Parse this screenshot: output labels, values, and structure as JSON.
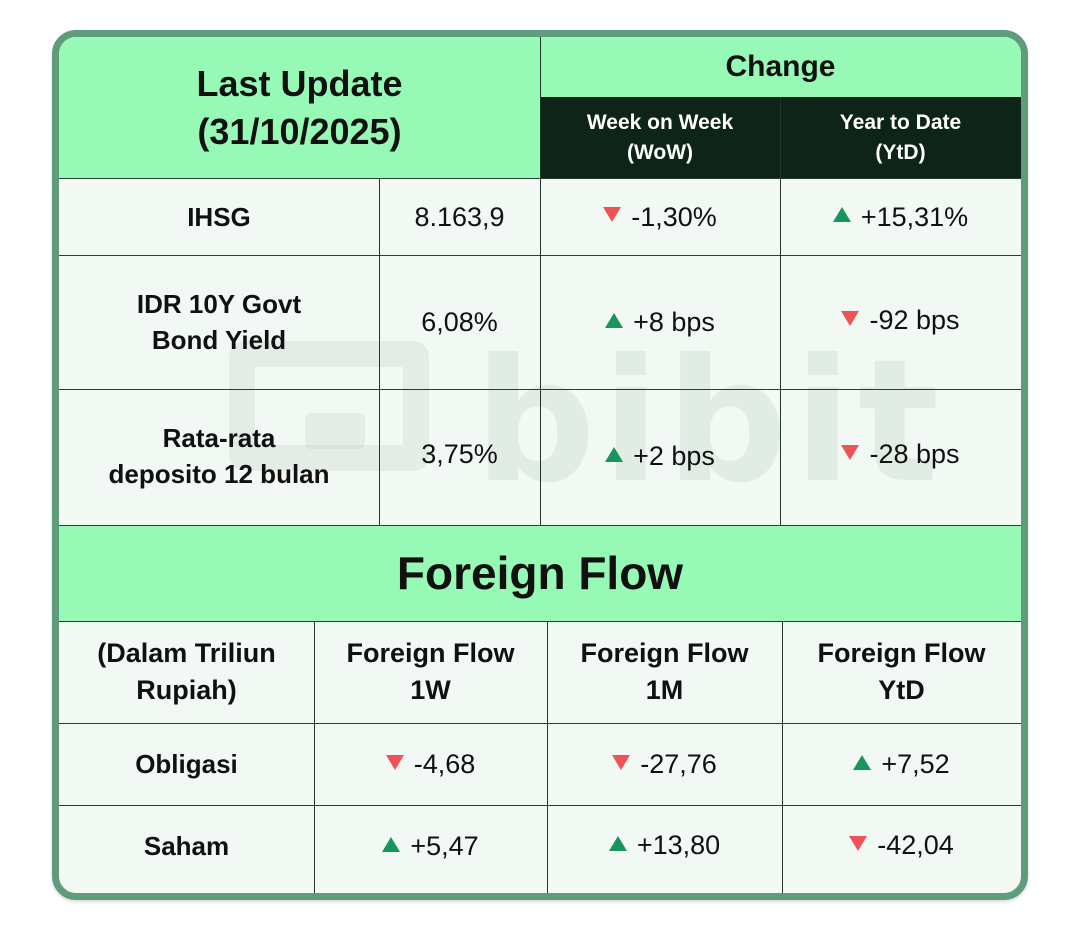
{
  "header": {
    "last_update_line1": "Last Update",
    "last_update_line2": "(31/10/2025)",
    "change_label": "Change",
    "wow_line1": "Week on Week",
    "wow_line2": "(WoW)",
    "ytd_line1": "Year to Date",
    "ytd_line2": "(YtD)"
  },
  "indicators": [
    {
      "name_line1": "IHSG",
      "name_line2": "",
      "value": "8.163,9",
      "wow": "-1,30%",
      "wow_dir": "down",
      "ytd": "+15,31%",
      "ytd_dir": "up"
    },
    {
      "name_line1": "IDR 10Y Govt",
      "name_line2": "Bond Yield",
      "value": "6,08%",
      "wow": "+8 bps",
      "wow_dir": "up",
      "ytd": "-92 bps",
      "ytd_dir": "down"
    },
    {
      "name_line1": "Rata-rata",
      "name_line2": "deposito 12 bulan",
      "value": "3,75%",
      "wow": "+2 bps",
      "wow_dir": "up",
      "ytd": "-28 bps",
      "ytd_dir": "down"
    }
  ],
  "foreign_flow": {
    "title": "Foreign Flow",
    "unit_line1": "(Dalam Triliun",
    "unit_line2": "Rupiah)",
    "columns": [
      {
        "line1": "Foreign Flow",
        "line2": "1W"
      },
      {
        "line1": "Foreign Flow",
        "line2": "1M"
      },
      {
        "line1": "Foreign Flow",
        "line2": "YtD"
      }
    ],
    "rows": [
      {
        "label": "Obligasi",
        "values": [
          {
            "text": "-4,68",
            "dir": "down"
          },
          {
            "text": "-27,76",
            "dir": "down"
          },
          {
            "text": "+7,52",
            "dir": "up"
          }
        ]
      },
      {
        "label": "Saham",
        "values": [
          {
            "text": "+5,47",
            "dir": "up"
          },
          {
            "text": "+13,80",
            "dir": "up"
          },
          {
            "text": "-42,04",
            "dir": "down"
          }
        ]
      }
    ]
  },
  "watermark": {
    "text": "bibit",
    "logo_icon": "bibit-wallet-logo"
  },
  "colors": {
    "header_green": "#97f9b6",
    "dark_header": "#0f2419",
    "border": "#5f9c7c",
    "up": "#16955c",
    "down": "#ef5257"
  }
}
